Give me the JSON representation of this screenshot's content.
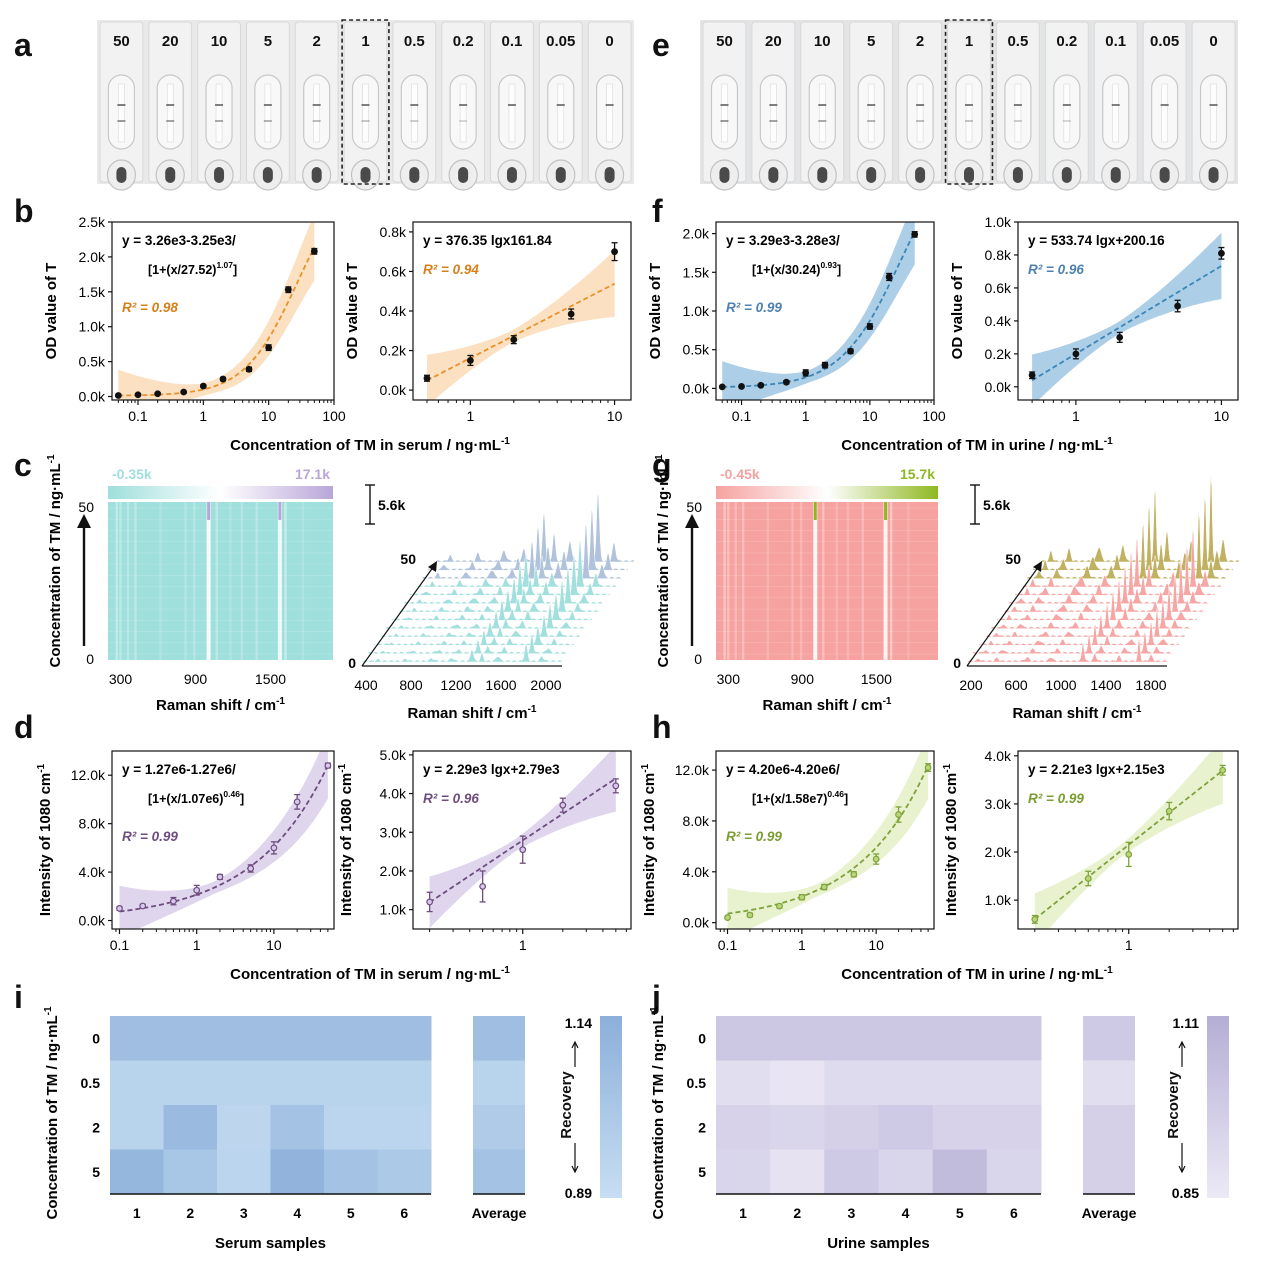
{
  "panel_letters": [
    "a",
    "b",
    "c",
    "d",
    "e",
    "f",
    "g",
    "h",
    "i",
    "j"
  ],
  "colors": {
    "serum_od": "#e8922a",
    "urine_od": "#3a86b8",
    "serum_raman_low": "#9fdfdc",
    "serum_raman_high": "#b9a6d9",
    "urine_raman_low": "#f6a2a0",
    "urine_raman_high": "#8fb820",
    "serum_sers": "#6e4d7e",
    "urine_sers": "#7fa23a",
    "recovery_serum": "#90b4dc",
    "recovery_urine": "#b6b0d6",
    "r2_serum_od": "#d6801a",
    "r2_urine_od": "#4f81b0",
    "r2_serum_sers": "#6e4d7e",
    "r2_urine_sers": "#7a9c30"
  },
  "strip_panels": {
    "serum_concentrations": [
      "50",
      "20",
      "10",
      "5",
      "2",
      "1",
      "0.5",
      "0.2",
      "0.1",
      "0.05",
      "0"
    ],
    "urine_concentrations": [
      "50",
      "20",
      "10",
      "5",
      "2",
      "1",
      "0.5",
      "0.2",
      "0.1",
      "0.05",
      "0"
    ]
  },
  "shared_labels": {
    "od_ylabel": "OD value of T",
    "serum_xlabel": "Concentration of TM in serum / ng·mL",
    "urine_xlabel": "Concentration of TM in urine / ng·mL",
    "xlabel_sup": "-1",
    "conc_ylabel": "Concentration of TM / ng·mL",
    "conc_ylabel_sup": "-1",
    "raman_xlabel": "Raman shift / cm",
    "raman_sup": "-1",
    "intensity_ylabel": "Intensity of 1080 cm",
    "intensity_sup": "-1",
    "scale_label": "5.6k"
  },
  "chart_data": [
    {
      "id": "b1",
      "type": "scatter",
      "equation_line1": "y = 3.26e3-3.25e3/",
      "equation_line2": "[1+(x/27.52)",
      "equation_exp": "1.07",
      "equation_close": "]",
      "r2": "R² = 0.98",
      "xscale": "log",
      "xlim": [
        0.04,
        100
      ],
      "ylim": [
        -50,
        2500
      ],
      "xticks": [
        0.1,
        1,
        10,
        100
      ],
      "xtick_labels": [
        "0.1",
        "1",
        "10",
        "100"
      ],
      "yticks": [
        0,
        500,
        1000,
        1500,
        2000,
        2500
      ],
      "ytick_labels": [
        "0.0k",
        "0.5k",
        "1.0k",
        "1.5k",
        "2.0k",
        "2.5k"
      ],
      "x": [
        0.05,
        0.1,
        0.2,
        0.5,
        1,
        2,
        5,
        10,
        20,
        50
      ],
      "y": [
        15,
        25,
        40,
        65,
        150,
        250,
        390,
        700,
        1530,
        2080
      ],
      "err": [
        15,
        15,
        15,
        15,
        20,
        25,
        30,
        40,
        40,
        40
      ],
      "fit": {
        "kind": "logistic",
        "A": 3260,
        "B": 3250,
        "x0": 27.52,
        "p": 1.07
      }
    },
    {
      "id": "b2",
      "type": "scatter",
      "equation_line1": "y = 376.35 lgx161.84",
      "r2": "R² = 0.94",
      "xscale": "log",
      "xlim": [
        0.4,
        13
      ],
      "ylim": [
        -50,
        850
      ],
      "xticks": [
        1,
        10
      ],
      "xtick_labels": [
        "1",
        "10"
      ],
      "yticks": [
        0,
        200,
        400,
        600,
        800
      ],
      "ytick_labels": [
        "0.0k",
        "0.2k",
        "0.4k",
        "0.6k",
        "0.8k"
      ],
      "x": [
        0.5,
        1,
        2,
        5,
        10
      ],
      "y": [
        60,
        150,
        255,
        385,
        700
      ],
      "err": [
        15,
        25,
        20,
        25,
        45
      ],
      "fit": {
        "kind": "log",
        "a": 376.35,
        "b": 161.84
      }
    },
    {
      "id": "f1",
      "type": "scatter",
      "equation_line1": "y = 3.29e3-3.28e3/",
      "equation_line2": "[1+(x/30.24)",
      "equation_exp": "0.93",
      "equation_close": "]",
      "r2": "R² = 0.99",
      "xscale": "log",
      "xlim": [
        0.04,
        100
      ],
      "ylim": [
        -150,
        2150
      ],
      "xticks": [
        0.1,
        1,
        10,
        100
      ],
      "xtick_labels": [
        "0.1",
        "1",
        "10",
        "100"
      ],
      "yticks": [
        0,
        500,
        1000,
        1500,
        2000
      ],
      "ytick_labels": [
        "0.0k",
        "0.5k",
        "1.0k",
        "1.5k",
        "2.0k"
      ],
      "x": [
        0.05,
        0.1,
        0.2,
        0.5,
        1,
        2,
        5,
        10,
        20,
        50
      ],
      "y": [
        20,
        25,
        40,
        80,
        200,
        300,
        480,
        800,
        1440,
        1990
      ],
      "err": [
        10,
        10,
        15,
        20,
        40,
        35,
        30,
        35,
        45,
        35
      ],
      "fit": {
        "kind": "logistic",
        "A": 3290,
        "B": 3280,
        "x0": 30.24,
        "p": 0.93
      }
    },
    {
      "id": "f2",
      "type": "scatter",
      "equation_line1": "y = 533.74 lgx+200.16",
      "r2": "R² = 0.96",
      "xscale": "log",
      "xlim": [
        0.4,
        13
      ],
      "ylim": [
        -80,
        1000
      ],
      "xticks": [
        1,
        10
      ],
      "xtick_labels": [
        "1",
        "10"
      ],
      "yticks": [
        0,
        200,
        400,
        600,
        800,
        1000
      ],
      "ytick_labels": [
        "0.0k",
        "0.2k",
        "0.4k",
        "0.6k",
        "0.8k",
        "1.0k"
      ],
      "x": [
        0.5,
        1,
        2,
        5,
        10
      ],
      "y": [
        70,
        200,
        300,
        490,
        810
      ],
      "err": [
        20,
        30,
        30,
        35,
        35
      ],
      "fit": {
        "kind": "log",
        "a": 533.74,
        "b": 200.16
      }
    },
    {
      "id": "c1",
      "type": "heatmap",
      "colorbar_min": "-0.35k",
      "colorbar_max": "17.1k",
      "xticks": [
        300,
        900,
        1500
      ],
      "xtick_labels": [
        "300",
        "900",
        "1500"
      ],
      "ytick_labels": [
        "0",
        "50"
      ],
      "xlim": [
        200,
        2000
      ]
    },
    {
      "id": "c2",
      "type": "area",
      "xtick_labels": [
        "400",
        "800",
        "1200",
        "1600",
        "2000"
      ],
      "top_label": "50",
      "bottom_label": "0",
      "n_spectra": 13
    },
    {
      "id": "g1",
      "type": "heatmap",
      "colorbar_min": "-0.45k",
      "colorbar_max": "15.7k",
      "xticks": [
        300,
        900,
        1500
      ],
      "xtick_labels": [
        "300",
        "900",
        "1500"
      ],
      "ytick_labels": [
        "0",
        "50"
      ],
      "xlim": [
        200,
        2000
      ]
    },
    {
      "id": "g2",
      "type": "area",
      "xtick_labels": [
        "200",
        "600",
        "1000",
        "1400",
        "1800"
      ],
      "top_label": "50",
      "bottom_label": "0",
      "n_spectra": 13
    },
    {
      "id": "d1",
      "type": "scatter",
      "equation_line1": "y = 1.27e6-1.27e6/",
      "equation_line2": "[1+(x/1.07e6)",
      "equation_exp": "0.46",
      "equation_close": "]",
      "r2": "R² = 0.99",
      "xscale": "log",
      "xlim": [
        0.08,
        60
      ],
      "ylim": [
        -700,
        14000
      ],
      "xticks": [
        0.1,
        1,
        10
      ],
      "xtick_labels": [
        "0.1",
        "1",
        "10"
      ],
      "yticks": [
        0,
        4000,
        8000,
        12000
      ],
      "ytick_labels": [
        "0.0k",
        "4.0k",
        "8.0k",
        "12.0k"
      ],
      "x": [
        0.1,
        0.2,
        0.5,
        1,
        2,
        5,
        10,
        20,
        50
      ],
      "y": [
        1000,
        1200,
        1600,
        2500,
        3600,
        4300,
        6000,
        9800,
        12800
      ],
      "err": [
        150,
        150,
        300,
        400,
        200,
        300,
        500,
        600,
        200
      ],
      "fit": {
        "kind": "logistic",
        "A": 1270000,
        "B": 1270000,
        "x0": 1070000,
        "p": 0.46
      }
    },
    {
      "id": "d2",
      "type": "scatter",
      "equation_line1": "y = 2.29e3 lgx+2.79e3",
      "r2": "R² = 0.96",
      "xscale": "log",
      "xlim": [
        0.15,
        6.5
      ],
      "ylim": [
        500,
        5100
      ],
      "xticks": [
        1
      ],
      "xtick_labels": [
        "1"
      ],
      "yticks": [
        1000,
        2000,
        3000,
        4000,
        5000
      ],
      "ytick_labels": [
        "1.0k",
        "2.0k",
        "3.0k",
        "4.0k",
        "5.0k"
      ],
      "x": [
        0.2,
        0.5,
        1,
        2,
        5
      ],
      "y": [
        1200,
        1600,
        2550,
        3700,
        4200
      ],
      "err": [
        250,
        400,
        350,
        180,
        180
      ],
      "fit": {
        "kind": "log",
        "a": 2290,
        "b": 2790
      }
    },
    {
      "id": "h1",
      "type": "scatter",
      "equation_line1": "y = 4.20e6-4.20e6/",
      "equation_line2": "[1+(x/1.58e7)",
      "equation_exp": "0.46",
      "equation_close": "]",
      "r2": "R² = 0.99",
      "xscale": "log",
      "xlim": [
        0.07,
        60
      ],
      "ylim": [
        -500,
        13500
      ],
      "xticks": [
        0.1,
        1,
        10
      ],
      "xtick_labels": [
        "0.1",
        "1",
        "10"
      ],
      "yticks": [
        0,
        4000,
        8000,
        12000
      ],
      "ytick_labels": [
        "0.0k",
        "4.0k",
        "8.0k",
        "12.0k"
      ],
      "x": [
        0.1,
        0.2,
        0.5,
        1,
        2,
        5,
        10,
        20,
        50
      ],
      "y": [
        400,
        600,
        1300,
        2000,
        2800,
        3800,
        5000,
        8500,
        12200
      ],
      "err": [
        100,
        150,
        150,
        200,
        200,
        200,
        400,
        600,
        300
      ],
      "fit": {
        "kind": "logistic",
        "A": 4200000,
        "B": 4200000,
        "x0": 15800000,
        "p": 0.46
      }
    },
    {
      "id": "h2",
      "type": "scatter",
      "equation_line1": "y = 2.21e3 lgx+2.15e3",
      "r2": "R² = 0.99",
      "xscale": "log",
      "xlim": [
        0.15,
        6.5
      ],
      "ylim": [
        400,
        4100
      ],
      "xticks": [
        1
      ],
      "xtick_labels": [
        "1"
      ],
      "yticks": [
        1000,
        2000,
        3000,
        4000
      ],
      "ytick_labels": [
        "1.0k",
        "2.0k",
        "3.0k",
        "4.0k"
      ],
      "x": [
        0.2,
        0.5,
        1,
        2,
        5
      ],
      "y": [
        600,
        1450,
        1950,
        2850,
        3700
      ],
      "err": [
        80,
        150,
        250,
        180,
        100
      ],
      "fit": {
        "kind": "log",
        "a": 2210,
        "b": 2150
      }
    },
    {
      "id": "i",
      "type": "heatmap",
      "xlabel": "Serum samples",
      "columns": [
        "1",
        "2",
        "3",
        "4",
        "5",
        "6"
      ],
      "average_label": "Average",
      "rows": [
        "0",
        "0.5",
        "2",
        "5"
      ],
      "recovery_label": "Recovery",
      "cbar_max": "1.14",
      "cbar_min": "0.89",
      "values": [
        [
          1.06,
          1.06,
          1.06,
          1.06,
          1.06,
          1.06
        ],
        [
          0.95,
          0.95,
          0.95,
          0.95,
          0.95,
          0.95
        ],
        [
          0.95,
          1.08,
          0.93,
          1.04,
          0.94,
          0.94
        ],
        [
          1.1,
          1.02,
          0.94,
          1.12,
          1.04,
          1.0
        ]
      ],
      "average": [
        1.06,
        0.95,
        0.99,
        1.04
      ],
      "range": [
        0.89,
        1.14
      ]
    },
    {
      "id": "j",
      "type": "heatmap",
      "xlabel": "Urine samples",
      "columns": [
        "1",
        "2",
        "3",
        "4",
        "5",
        "6"
      ],
      "average_label": "Average",
      "rows": [
        "0",
        "0.5",
        "2",
        "5"
      ],
      "recovery_label": "Recovery",
      "cbar_max": "1.11",
      "cbar_min": "0.85",
      "values": [
        [
          1.0,
          1.0,
          1.0,
          1.0,
          1.0,
          1.0
        ],
        [
          0.9,
          0.87,
          0.91,
          0.91,
          0.91,
          0.91
        ],
        [
          0.95,
          0.94,
          0.96,
          0.99,
          0.95,
          0.95
        ],
        [
          0.94,
          0.88,
          0.99,
          0.94,
          1.05,
          0.94
        ]
      ],
      "average": [
        0.99,
        0.9,
        0.96,
        0.96
      ],
      "range": [
        0.85,
        1.11
      ]
    }
  ]
}
